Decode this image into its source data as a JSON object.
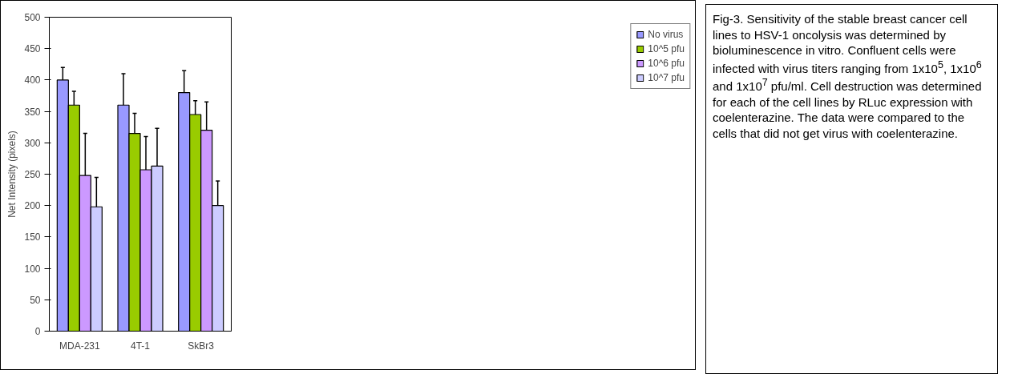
{
  "chart_data": {
    "type": "bar",
    "ylabel": "Net Intensity (pixels)",
    "categories": [
      "MDA-231",
      "4T-1",
      "SkBr3"
    ],
    "series": [
      {
        "name": "No virus",
        "color": "#9999ff",
        "values": [
          400,
          360,
          380
        ],
        "errors": [
          [
            400,
            420
          ],
          [
            360,
            410
          ],
          [
            380,
            415
          ]
        ]
      },
      {
        "name": "10^5 pfu",
        "color": "#99cc00",
        "values": [
          360,
          315,
          345
        ],
        "errors": [
          [
            360,
            382
          ],
          [
            315,
            347
          ],
          [
            345,
            367
          ]
        ]
      },
      {
        "name": "10^6 pfu",
        "color": "#cc99ff",
        "values": [
          248,
          257,
          320
        ],
        "errors": [
          [
            248,
            315
          ],
          [
            257,
            310
          ],
          [
            320,
            365
          ]
        ]
      },
      {
        "name": "10^7 pfu",
        "color": "#ccccff",
        "values": [
          198,
          263,
          200
        ],
        "errors": [
          [
            198,
            245
          ],
          [
            263,
            323
          ],
          [
            200,
            239
          ]
        ]
      }
    ],
    "ylim": [
      0,
      500
    ],
    "yticks": [
      0,
      50,
      100,
      150,
      200,
      250,
      300,
      350,
      400,
      450,
      500
    ],
    "grid": false,
    "legend": "right",
    "annotations": [
      "Fig-3. Sensitivity of the stable breast cancer cell lines to HSV-1 oncolysis was determined by bioluminescence in vitro. Confluent cells were infected with virus titers ranging from 1x10$^{5}$, 1x10$^{6}$ and 1x10$^{7}$ pfu/ml. Cell destruction was determined for each of the cell lines by RLuc expression with coelenterazine. The data were compared to the cells that did not get virus with coelenterazine."
    ]
  }
}
